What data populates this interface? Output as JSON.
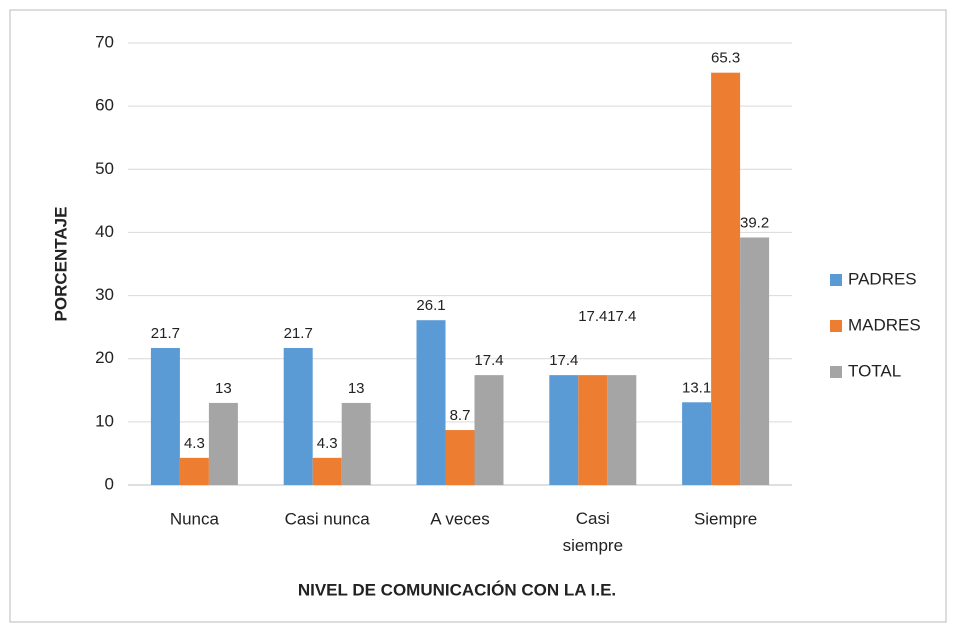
{
  "chart_data": {
    "type": "bar",
    "x_label": "NIVEL DE COMUNICACIÓN CON LA I.E.",
    "y_label": "PORCENTAJE",
    "categories": [
      "Nunca",
      "Casi nunca",
      "A veces",
      "Casi siempre",
      "Siempre"
    ],
    "series": [
      {
        "name": "PADRES",
        "color": "#5b9bd5",
        "values": [
          21.7,
          21.7,
          26.1,
          17.4,
          13.1
        ]
      },
      {
        "name": "MADRES",
        "color": "#ed7d31",
        "values": [
          4.3,
          4.3,
          8.7,
          17.4,
          65.3
        ]
      },
      {
        "name": "TOTAL",
        "color": "#a5a5a5",
        "values": [
          13,
          13,
          17.4,
          17.4,
          39.2
        ]
      }
    ],
    "ylim": [
      0,
      70
    ],
    "yticks": [
      0,
      10,
      20,
      30,
      40,
      50,
      60,
      70
    ],
    "grid": true,
    "legend": "right"
  }
}
